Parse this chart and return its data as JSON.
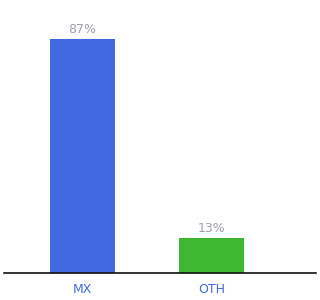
{
  "categories": [
    "MX",
    "OTH"
  ],
  "values": [
    87,
    13
  ],
  "bar_colors": [
    "#4169e1",
    "#3cb930"
  ],
  "label_color": "#a0a0b0",
  "label_fontsize": 9,
  "tick_fontsize": 9,
  "tick_color_mx": "#4169e1",
  "tick_color_oth": "#4169e1",
  "background_color": "#ffffff",
  "ylim": [
    0,
    100
  ],
  "bar_width": 0.5,
  "figsize": [
    3.2,
    3.0
  ],
  "dpi": 100
}
